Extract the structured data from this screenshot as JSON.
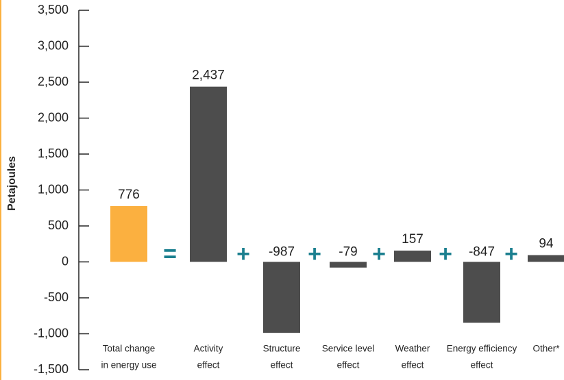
{
  "chart_data": {
    "type": "bar",
    "y_label": "Petajoules",
    "categories": [
      [
        "Total change",
        "in energy use"
      ],
      [
        "Activity",
        "effect"
      ],
      [
        "Structure",
        "effect"
      ],
      [
        "Service level",
        "effect"
      ],
      [
        "Weather",
        "effect"
      ],
      [
        "Energy efficiency",
        "effect"
      ],
      [
        "Other*"
      ]
    ],
    "values": [
      776,
      2437,
      -987,
      -79,
      157,
      -847,
      94
    ],
    "value_labels": [
      "776",
      "2,437",
      "-987",
      "-79",
      "157",
      "-847",
      "94"
    ],
    "colors": [
      "#fbb040",
      "#4d4d4d",
      "#4d4d4d",
      "#4d4d4d",
      "#4d4d4d",
      "#4d4d4d",
      "#4d4d4d"
    ],
    "operators": [
      "=",
      "+",
      "+",
      "+",
      "+",
      "+"
    ],
    "operator_color": "#1b7f8f",
    "ylim": [
      -1500,
      3500
    ],
    "yticks": [
      {
        "value": -1500,
        "label": "-1,500"
      },
      {
        "value": -1000,
        "label": "-1,000"
      },
      -500,
      0,
      500,
      {
        "value": 1000,
        "label": "1,000"
      },
      {
        "value": 1500,
        "label": "1,500"
      },
      {
        "value": 2000,
        "label": "2,000"
      },
      {
        "value": 2500,
        "label": "2,500"
      },
      {
        "value": 3000,
        "label": "3,000"
      },
      {
        "value": 3500,
        "label": "3,500"
      }
    ]
  }
}
